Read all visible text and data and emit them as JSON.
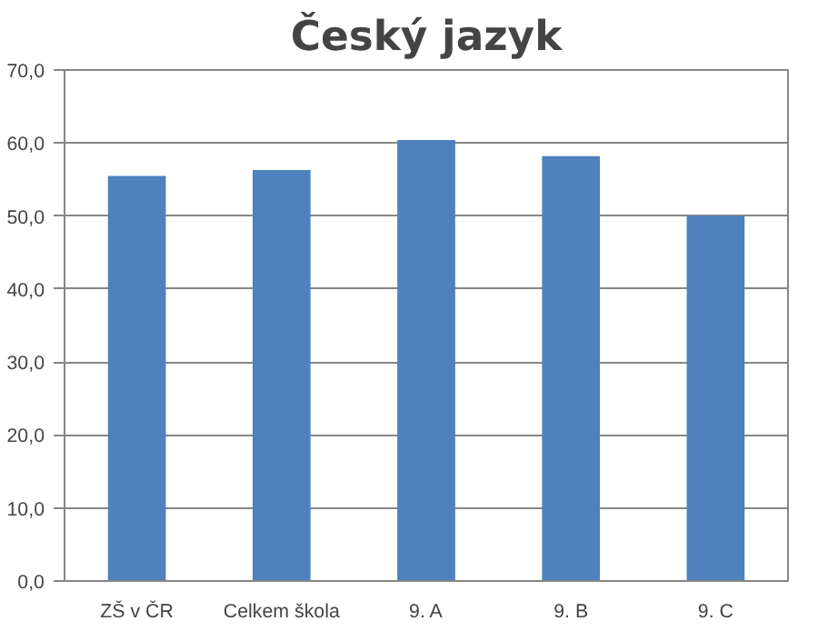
{
  "chart_data": {
    "type": "bar",
    "title": "Český jazyk",
    "categories": [
      "ZŠ v ČR",
      "Celkem škola",
      "9. A",
      "9. B",
      "9. C"
    ],
    "values": [
      55.5,
      56.3,
      60.4,
      58.2,
      50.0
    ],
    "color": "#4f81bd",
    "ylim": [
      0,
      70
    ],
    "yticks": [
      {
        "value": 0,
        "label": "0,0"
      },
      {
        "value": 10,
        "label": "10,0"
      },
      {
        "value": 20,
        "label": "20,0"
      },
      {
        "value": 30,
        "label": "30,0"
      },
      {
        "value": 40,
        "label": "40,0"
      },
      {
        "value": 50,
        "label": "50,0"
      },
      {
        "value": 60,
        "label": "60,0"
      },
      {
        "value": 70,
        "label": "70,0"
      }
    ],
    "grid": "y"
  }
}
